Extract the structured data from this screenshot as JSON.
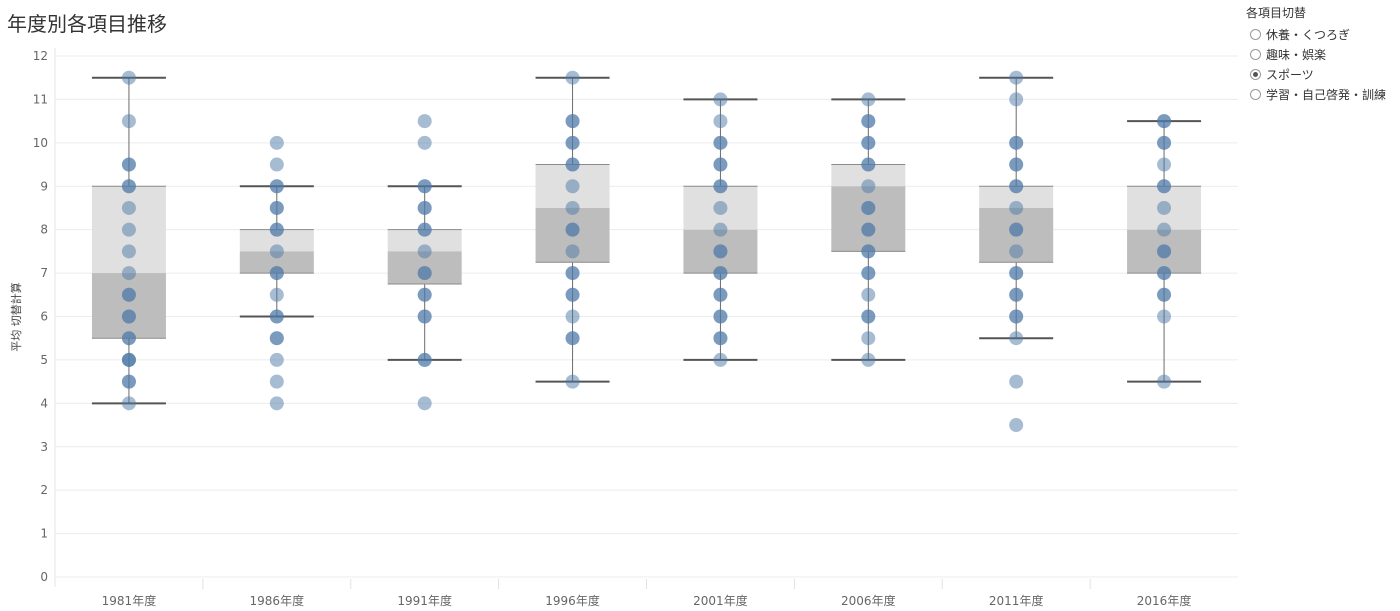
{
  "title": "年度別各項目推移",
  "legend": {
    "title": "各項目切替",
    "options": [
      "休養・くつろぎ",
      "趣味・娯楽",
      "スポーツ",
      "学習・自己啓発・訓練"
    ],
    "selected": "スポーツ"
  },
  "colors": {
    "dot": "#4e79a7",
    "box_upper": "#e0e0e0",
    "box_lower": "#bdbdbd",
    "whisker": "#555555",
    "grid": "#ececec"
  },
  "chart_data": {
    "type": "boxplot_with_points",
    "title": "年度別各項目推移",
    "xlabel": "",
    "ylabel": "平均 切替計算",
    "ylim": [
      0,
      12
    ],
    "yticks": [
      0,
      1,
      2,
      3,
      4,
      5,
      6,
      7,
      8,
      9,
      10,
      11,
      12
    ],
    "categories": [
      "1981年度",
      "1986年度",
      "1991年度",
      "1996年度",
      "2001年度",
      "2006年度",
      "2011年度",
      "2016年度"
    ],
    "boxes": [
      {
        "category": "1981年度",
        "whisker_low": 4.0,
        "q1": 5.5,
        "median": 7.0,
        "q3": 9.0,
        "whisker_high": 11.5
      },
      {
        "category": "1986年度",
        "whisker_low": 6.0,
        "q1": 7.0,
        "median": 7.5,
        "q3": 8.0,
        "whisker_high": 9.0
      },
      {
        "category": "1991年度",
        "whisker_low": 5.0,
        "q1": 6.75,
        "median": 7.5,
        "q3": 8.0,
        "whisker_high": 9.0
      },
      {
        "category": "1996年度",
        "whisker_low": 4.5,
        "q1": 7.25,
        "median": 8.5,
        "q3": 9.5,
        "whisker_high": 11.5
      },
      {
        "category": "2001年度",
        "whisker_low": 5.0,
        "q1": 7.0,
        "median": 8.0,
        "q3": 9.0,
        "whisker_high": 11.0
      },
      {
        "category": "2006年度",
        "whisker_low": 5.0,
        "q1": 7.5,
        "median": 9.0,
        "q3": 9.5,
        "whisker_high": 11.0
      },
      {
        "category": "2011年度",
        "whisker_low": 5.5,
        "q1": 7.25,
        "median": 8.5,
        "q3": 9.0,
        "whisker_high": 11.5
      },
      {
        "category": "2016年度",
        "whisker_low": 4.5,
        "q1": 7.0,
        "median": 8.0,
        "q3": 9.0,
        "whisker_high": 10.5
      }
    ],
    "points": [
      {
        "category": "1981年度",
        "values": [
          11.5,
          10.5,
          9.5,
          9.5,
          9.0,
          9.0,
          8.5,
          8.0,
          7.5,
          7.0,
          6.5,
          6.5,
          6.0,
          6.0,
          5.5,
          5.5,
          5.0,
          5.0,
          5.0,
          4.5,
          4.5,
          4.0
        ]
      },
      {
        "category": "1986年度",
        "values": [
          10.0,
          9.5,
          9.0,
          9.0,
          8.5,
          8.5,
          8.0,
          8.0,
          7.5,
          7.0,
          7.0,
          6.5,
          6.0,
          6.0,
          5.5,
          5.5,
          5.0,
          4.5,
          4.0
        ]
      },
      {
        "category": "1991年度",
        "values": [
          10.5,
          10.0,
          9.0,
          9.0,
          8.5,
          8.5,
          8.0,
          8.0,
          7.5,
          7.0,
          7.0,
          6.5,
          6.5,
          6.0,
          6.0,
          5.0,
          5.0,
          4.0
        ]
      },
      {
        "category": "1996年度",
        "values": [
          11.5,
          10.5,
          10.5,
          10.0,
          10.0,
          9.5,
          9.5,
          9.0,
          8.5,
          8.0,
          8.0,
          7.5,
          7.0,
          7.0,
          6.5,
          6.5,
          6.0,
          5.5,
          5.5,
          4.5
        ]
      },
      {
        "category": "2001年度",
        "values": [
          11.0,
          10.5,
          10.0,
          10.0,
          9.5,
          9.5,
          9.0,
          9.0,
          8.5,
          8.0,
          7.5,
          7.5,
          7.0,
          7.0,
          6.5,
          6.5,
          6.0,
          6.0,
          5.5,
          5.5,
          5.0
        ]
      },
      {
        "category": "2006年度",
        "values": [
          11.0,
          10.5,
          10.5,
          10.0,
          10.0,
          9.5,
          9.5,
          9.0,
          8.5,
          8.5,
          8.0,
          8.0,
          7.5,
          7.5,
          7.0,
          7.0,
          6.5,
          6.0,
          6.0,
          5.5,
          5.0
        ]
      },
      {
        "category": "2011年度",
        "values": [
          11.5,
          11.0,
          10.0,
          10.0,
          9.5,
          9.5,
          9.0,
          9.0,
          8.5,
          8.0,
          8.0,
          7.5,
          7.0,
          7.0,
          6.5,
          6.5,
          6.0,
          6.0,
          5.5,
          4.5,
          3.5
        ]
      },
      {
        "category": "2016年度",
        "values": [
          10.5,
          10.5,
          10.0,
          10.0,
          9.5,
          9.0,
          9.0,
          8.5,
          8.0,
          7.5,
          7.5,
          7.0,
          7.0,
          6.5,
          6.5,
          6.0,
          4.5
        ]
      }
    ]
  }
}
